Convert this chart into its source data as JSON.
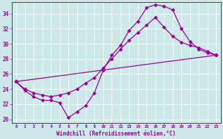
{
  "xlabel": "Windchill (Refroidissement éolien,°C)",
  "bg_color": "#cce8e8",
  "line_color": "#990099",
  "marker": "D",
  "markersize": 2.5,
  "linewidth": 0.9,
  "xlim": [
    -0.5,
    23.5
  ],
  "ylim": [
    19.5,
    35.5
  ],
  "yticks": [
    20,
    22,
    24,
    26,
    28,
    30,
    32,
    34
  ],
  "xticks": [
    0,
    1,
    2,
    3,
    4,
    5,
    6,
    7,
    8,
    9,
    10,
    11,
    12,
    13,
    14,
    15,
    16,
    17,
    18,
    19,
    20,
    21,
    22,
    23
  ],
  "line1_x": [
    0,
    1,
    2,
    3,
    4,
    5,
    6,
    7,
    8,
    9,
    10,
    11,
    12,
    13,
    14,
    15,
    16,
    17,
    18,
    19,
    20,
    21,
    22,
    23
  ],
  "line1_y": [
    25.0,
    23.8,
    23.0,
    22.5,
    22.5,
    22.2,
    20.2,
    21.0,
    21.8,
    23.5,
    26.5,
    28.5,
    29.8,
    31.8,
    33.0,
    34.8,
    35.2,
    35.0,
    34.5,
    32.0,
    30.3,
    29.3,
    28.8,
    28.5
  ],
  "line2_x": [
    0,
    23
  ],
  "line2_y": [
    25.0,
    28.5
  ],
  "line3_x": [
    0,
    1,
    2,
    3,
    4,
    5,
    6,
    7,
    8,
    9,
    10,
    11,
    12,
    13,
    14,
    15,
    16,
    17,
    18,
    19,
    20,
    21,
    22,
    23
  ],
  "line3_y": [
    25.0,
    24.0,
    23.5,
    23.2,
    23.0,
    23.2,
    23.5,
    24.0,
    24.8,
    25.5,
    26.8,
    28.0,
    29.3,
    30.5,
    31.5,
    32.5,
    33.5,
    32.2,
    31.0,
    30.2,
    29.8,
    29.5,
    29.0,
    28.5
  ]
}
